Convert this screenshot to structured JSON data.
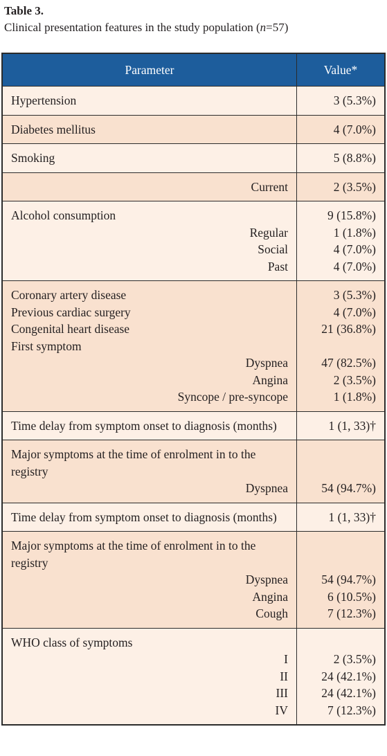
{
  "title": "Table 3.",
  "caption": {
    "before": "Clinical presentation features in the study population (",
    "italic": "n",
    "after": "=57)"
  },
  "table": {
    "header": [
      "Parameter",
      "Value*"
    ],
    "groups": [
      {
        "rows": [
          {
            "label": "Hypertension",
            "value": "3 (5.3%)"
          }
        ]
      },
      {
        "rows": [
          {
            "label": "Diabetes mellitus",
            "value": "4 (7.0%)"
          }
        ]
      },
      {
        "rows": [
          {
            "label": "Smoking",
            "value": "5 (8.8%)"
          }
        ]
      },
      {
        "rows": [
          {
            "label": "Current",
            "indent": true,
            "value": "2 (3.5%)"
          }
        ]
      },
      {
        "rows": [
          {
            "label": "Alcohol consumption",
            "value": "9 (15.8%)"
          },
          {
            "label": "Regular",
            "indent": true,
            "value": "1 (1.8%)"
          },
          {
            "label": "Social",
            "indent": true,
            "value": "4 (7.0%)"
          },
          {
            "label": "Past",
            "indent": true,
            "value": "4 (7.0%)"
          }
        ]
      },
      {
        "rows": [
          {
            "label": "Coronary artery disease",
            "value": "3 (5.3%)"
          },
          {
            "label": "Previous cardiac surgery",
            "value": "4 (7.0%)"
          },
          {
            "label": "Congenital heart disease",
            "value": "21 (36.8%)"
          },
          {
            "label": "First symptom"
          },
          {
            "label": "Dyspnea",
            "indent": true,
            "value": "47 (82.5%)"
          },
          {
            "label": "Angina",
            "indent": true,
            "value": "2 (3.5%)"
          },
          {
            "label": "Syncope / pre-syncope",
            "indent": true,
            "value": "1 (1.8%)"
          }
        ]
      },
      {
        "rows": [
          {
            "label": "Time delay from symptom onset to diagnosis (months)",
            "value": "1 (1, 33)†"
          }
        ]
      },
      {
        "rows": [
          {
            "label": "Major symptoms at the time of enrolment in to the registry"
          },
          {
            "label": "Dyspnea",
            "indent": true,
            "value": "54 (94.7%)"
          }
        ]
      },
      {
        "rows": [
          {
            "label": "Time delay from symptom onset to diagnosis (months)",
            "value": "1 (1, 33)†"
          }
        ]
      },
      {
        "rows": [
          {
            "label": "Major symptoms at the time of enrolment in to the registry"
          },
          {
            "label": "Dyspnea",
            "indent": true,
            "value": "54 (94.7%)"
          },
          {
            "label": "Angina",
            "indent": true,
            "value": "6 (10.5%)"
          },
          {
            "label": "Cough",
            "indent": true,
            "value": "7 (12.3%)"
          }
        ]
      },
      {
        "rows": [
          {
            "label": "WHO class of symptoms"
          },
          {
            "label": "I",
            "indent": true,
            "value": "2 (3.5%)"
          },
          {
            "label": "II",
            "indent": true,
            "value": "24 (42.1%)"
          },
          {
            "label": "III",
            "indent": true,
            "value": "24 (42.1%)"
          },
          {
            "label": "IV",
            "indent": true,
            "value": "7 (12.3%)"
          }
        ]
      }
    ]
  }
}
